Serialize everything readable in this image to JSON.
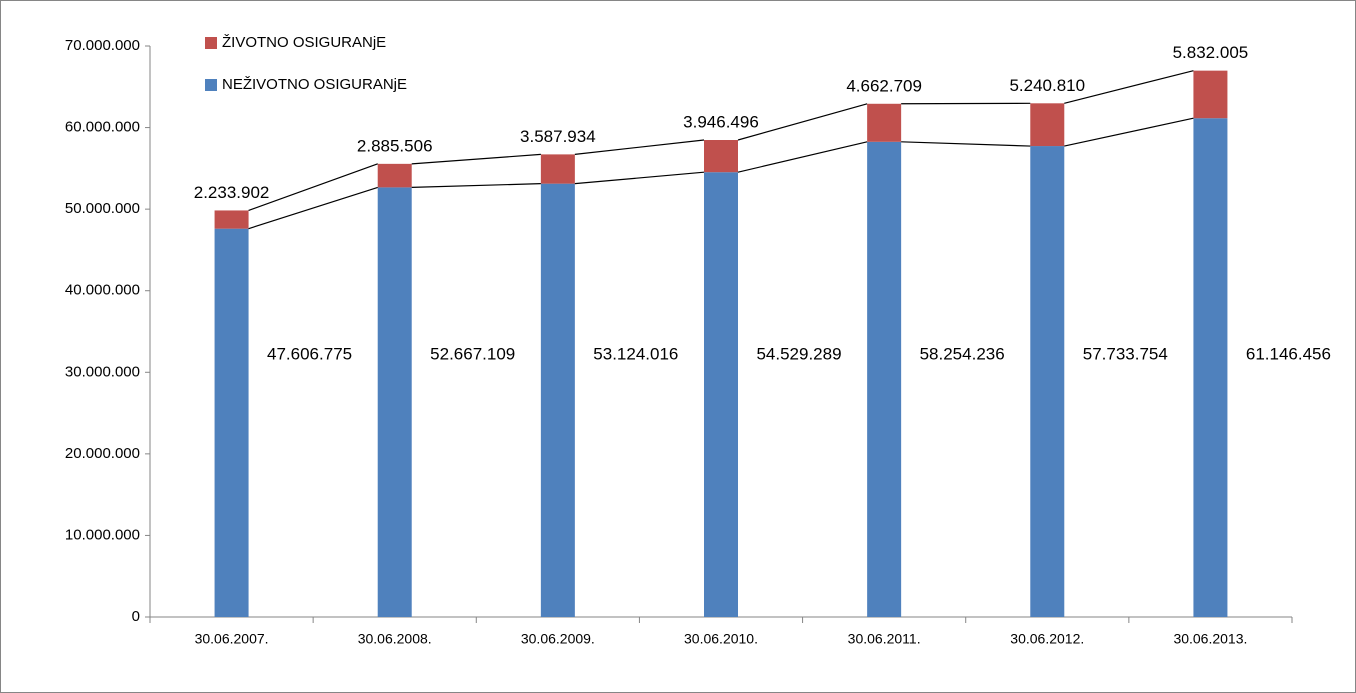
{
  "chart_data": {
    "type": "stacked_bar",
    "categories": [
      "30.06.2007.",
      "30.06.2008.",
      "30.06.2009.",
      "30.06.2010.",
      "30.06.2011.",
      "30.06.2012.",
      "30.06.2013."
    ],
    "series": [
      {
        "name": "NEŽIVOTNO OSIGURANjE",
        "color": "#4f81bd",
        "values": [
          47606775,
          52667109,
          53124016,
          54529289,
          58254236,
          57733754,
          61146456
        ],
        "value_labels": [
          "47.606.775",
          "52.667.109",
          "53.124.016",
          "54.529.289",
          "58.254.236",
          "57.733.754",
          "61.146.456"
        ]
      },
      {
        "name": "ŽIVOTNO OSIGURANjE",
        "color": "#c0504d",
        "values": [
          2233902,
          2885506,
          3587934,
          3946496,
          4662709,
          5240810,
          5832005
        ],
        "value_labels": [
          "2.233.902",
          "2.885.506",
          "3.587.934",
          "3.946.496",
          "4.662.709",
          "5.240.810",
          "5.832.005"
        ]
      }
    ],
    "ylim": [
      0,
      70000000
    ],
    "yticks": [
      0,
      {
        "value": 10000000,
        "label": "10.000.000"
      },
      {
        "value": 20000000,
        "label": "20.000.000"
      },
      {
        "value": 30000000,
        "label": "30.000.000"
      },
      {
        "value": 40000000,
        "label": "40.000.000"
      },
      {
        "value": 50000000,
        "label": "50.000.000"
      },
      {
        "value": 60000000,
        "label": "60.000.000"
      },
      {
        "value": 70000000,
        "label": "70.000.000"
      }
    ],
    "legend": "top-left",
    "series_lines": true
  }
}
